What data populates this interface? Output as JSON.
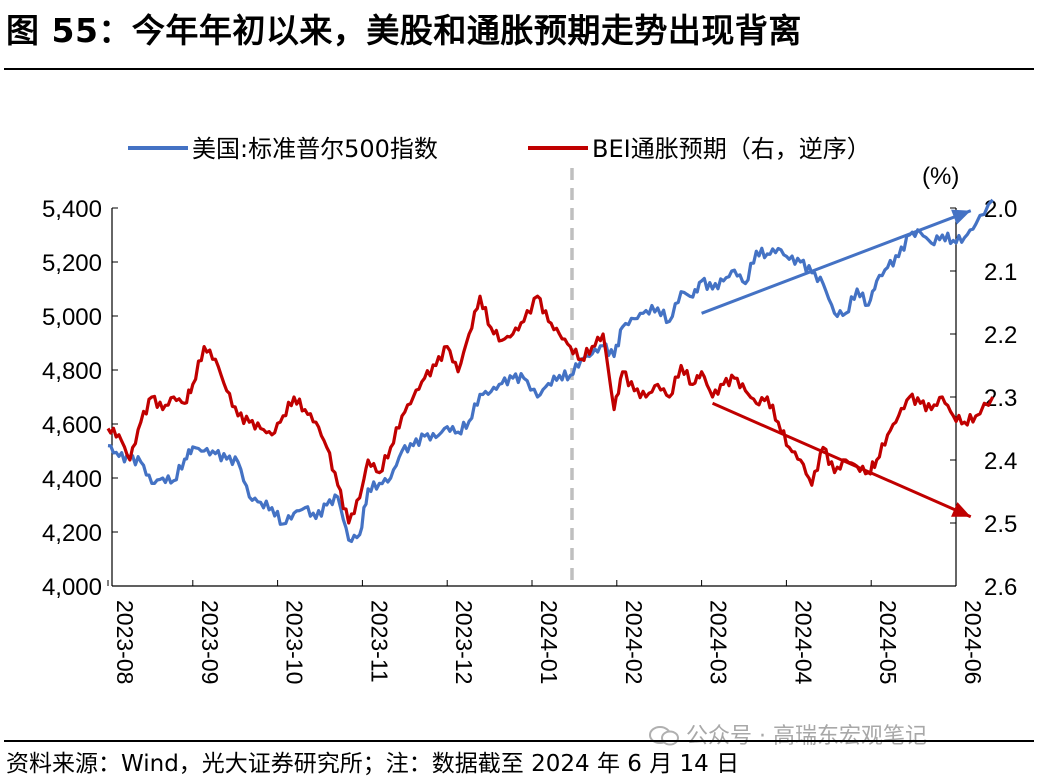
{
  "header": {
    "title": "图 55：今年年初以来，美股和通胀预期走势出现背离"
  },
  "footer": {
    "source": "资料来源：Wind，光大证券研究所；注：数据截至 2024 年 6 月 14 日",
    "watermark": "公众号 · 高瑞东宏观笔记"
  },
  "colors": {
    "spx": "#4472C4",
    "bei": "#C00000",
    "divider": "#BFBFBF"
  },
  "chart_data": {
    "type": "line",
    "title": "",
    "x_labels": [
      "2023-08",
      "2023-09",
      "2023-10",
      "2023-11",
      "2023-12",
      "2024-01",
      "2024-02",
      "2024-03",
      "2024-04",
      "2024-05",
      "2024-06"
    ],
    "y_left": {
      "min": 4000,
      "max": 5400,
      "ticks": [
        "4,000",
        "4,200",
        "4,400",
        "4,600",
        "4,800",
        "5,000",
        "5,200",
        "5,400"
      ]
    },
    "y_right": {
      "min": 2.0,
      "max": 2.6,
      "inverted": true,
      "unit_label": "(%)",
      "ticks": [
        "2.0",
        "2.1",
        "2.2",
        "2.3",
        "2.4",
        "2.5",
        "2.6"
      ]
    },
    "legend": {
      "position": "top"
    },
    "series": [
      {
        "name": "美国:标准普尔500指数",
        "axis": "left",
        "points": [
          [
            "2023-08-01",
            4520
          ],
          [
            "2023-08-05",
            4480
          ],
          [
            "2023-08-09",
            4470
          ],
          [
            "2023-08-13",
            4460
          ],
          [
            "2023-08-17",
            4380
          ],
          [
            "2023-08-21",
            4400
          ],
          [
            "2023-08-25",
            4390
          ],
          [
            "2023-08-29",
            4470
          ],
          [
            "2023-09-01",
            4515
          ],
          [
            "2023-09-05",
            4500
          ],
          [
            "2023-09-09",
            4490
          ],
          [
            "2023-09-13",
            4470
          ],
          [
            "2023-09-17",
            4460
          ],
          [
            "2023-09-21",
            4330
          ],
          [
            "2023-09-25",
            4310
          ],
          [
            "2023-09-29",
            4290
          ],
          [
            "2023-10-03",
            4230
          ],
          [
            "2023-10-07",
            4270
          ],
          [
            "2023-10-11",
            4290
          ],
          [
            "2023-10-15",
            4250
          ],
          [
            "2023-10-19",
            4300
          ],
          [
            "2023-10-23",
            4330
          ],
          [
            "2023-10-27",
            4170
          ],
          [
            "2023-10-31",
            4190
          ],
          [
            "2023-11-03",
            4360
          ],
          [
            "2023-11-07",
            4380
          ],
          [
            "2023-11-11",
            4400
          ],
          [
            "2023-11-15",
            4500
          ],
          [
            "2023-11-19",
            4520
          ],
          [
            "2023-11-23",
            4555
          ],
          [
            "2023-11-27",
            4550
          ],
          [
            "2023-12-01",
            4590
          ],
          [
            "2023-12-05",
            4570
          ],
          [
            "2023-12-09",
            4610
          ],
          [
            "2023-12-13",
            4710
          ],
          [
            "2023-12-17",
            4720
          ],
          [
            "2023-12-21",
            4750
          ],
          [
            "2023-12-25",
            4770
          ],
          [
            "2023-12-29",
            4770
          ],
          [
            "2024-01-03",
            4700
          ],
          [
            "2024-01-07",
            4750
          ],
          [
            "2024-01-11",
            4780
          ],
          [
            "2024-01-15",
            4780
          ],
          [
            "2024-01-19",
            4840
          ],
          [
            "2024-01-23",
            4860
          ],
          [
            "2024-01-27",
            4890
          ],
          [
            "2024-01-31",
            4850
          ],
          [
            "2024-02-03",
            4960
          ],
          [
            "2024-02-07",
            4990
          ],
          [
            "2024-02-11",
            5020
          ],
          [
            "2024-02-15",
            5030
          ],
          [
            "2024-02-19",
            4980
          ],
          [
            "2024-02-23",
            5090
          ],
          [
            "2024-02-27",
            5070
          ],
          [
            "2024-03-01",
            5130
          ],
          [
            "2024-03-05",
            5100
          ],
          [
            "2024-03-09",
            5130
          ],
          [
            "2024-03-13",
            5170
          ],
          [
            "2024-03-17",
            5120
          ],
          [
            "2024-03-21",
            5240
          ],
          [
            "2024-03-25",
            5230
          ],
          [
            "2024-03-29",
            5250
          ],
          [
            "2024-04-02",
            5210
          ],
          [
            "2024-04-06",
            5200
          ],
          [
            "2024-04-10",
            5160
          ],
          [
            "2024-04-14",
            5120
          ],
          [
            "2024-04-18",
            5010
          ],
          [
            "2024-04-22",
            5010
          ],
          [
            "2024-04-26",
            5100
          ],
          [
            "2024-04-30",
            5040
          ],
          [
            "2024-05-03",
            5130
          ],
          [
            "2024-05-07",
            5180
          ],
          [
            "2024-05-11",
            5220
          ],
          [
            "2024-05-15",
            5300
          ],
          [
            "2024-05-19",
            5310
          ],
          [
            "2024-05-23",
            5270
          ],
          [
            "2024-05-27",
            5300
          ],
          [
            "2024-05-31",
            5280
          ],
          [
            "2024-06-04",
            5290
          ],
          [
            "2024-06-08",
            5340
          ],
          [
            "2024-06-14",
            5430
          ]
        ]
      },
      {
        "name": "BEI通胀预期（右，逆序）",
        "axis": "right",
        "points": [
          [
            "2023-08-01",
            2.35
          ],
          [
            "2023-08-05",
            2.36
          ],
          [
            "2023-08-09",
            2.4
          ],
          [
            "2023-08-13",
            2.34
          ],
          [
            "2023-08-17",
            2.3
          ],
          [
            "2023-08-21",
            2.32
          ],
          [
            "2023-08-25",
            2.3
          ],
          [
            "2023-08-29",
            2.31
          ],
          [
            "2023-09-01",
            2.28
          ],
          [
            "2023-09-05",
            2.22
          ],
          [
            "2023-09-09",
            2.24
          ],
          [
            "2023-09-13",
            2.29
          ],
          [
            "2023-09-17",
            2.33
          ],
          [
            "2023-09-21",
            2.34
          ],
          [
            "2023-09-25",
            2.35
          ],
          [
            "2023-09-29",
            2.36
          ],
          [
            "2023-10-03",
            2.33
          ],
          [
            "2023-10-07",
            2.3
          ],
          [
            "2023-10-11",
            2.32
          ],
          [
            "2023-10-15",
            2.34
          ],
          [
            "2023-10-19",
            2.38
          ],
          [
            "2023-10-23",
            2.44
          ],
          [
            "2023-10-27",
            2.5
          ],
          [
            "2023-10-31",
            2.46
          ],
          [
            "2023-11-03",
            2.4
          ],
          [
            "2023-11-07",
            2.42
          ],
          [
            "2023-11-11",
            2.38
          ],
          [
            "2023-11-15",
            2.33
          ],
          [
            "2023-11-19",
            2.3
          ],
          [
            "2023-11-23",
            2.27
          ],
          [
            "2023-11-27",
            2.25
          ],
          [
            "2023-12-01",
            2.22
          ],
          [
            "2023-12-05",
            2.26
          ],
          [
            "2023-12-09",
            2.2
          ],
          [
            "2023-12-13",
            2.14
          ],
          [
            "2023-12-17",
            2.19
          ],
          [
            "2023-12-21",
            2.21
          ],
          [
            "2023-12-25",
            2.2
          ],
          [
            "2023-12-29",
            2.18
          ],
          [
            "2024-01-03",
            2.14
          ],
          [
            "2024-01-07",
            2.18
          ],
          [
            "2024-01-11",
            2.2
          ],
          [
            "2024-01-15",
            2.22
          ],
          [
            "2024-01-19",
            2.24
          ],
          [
            "2024-01-23",
            2.22
          ],
          [
            "2024-01-27",
            2.2
          ],
          [
            "2024-01-31",
            2.32
          ],
          [
            "2024-02-03",
            2.26
          ],
          [
            "2024-02-07",
            2.29
          ],
          [
            "2024-02-11",
            2.3
          ],
          [
            "2024-02-15",
            2.28
          ],
          [
            "2024-02-19",
            2.3
          ],
          [
            "2024-02-23",
            2.25
          ],
          [
            "2024-02-27",
            2.28
          ],
          [
            "2024-03-01",
            2.26
          ],
          [
            "2024-03-05",
            2.3
          ],
          [
            "2024-03-09",
            2.28
          ],
          [
            "2024-03-13",
            2.27
          ],
          [
            "2024-03-17",
            2.29
          ],
          [
            "2024-03-21",
            2.31
          ],
          [
            "2024-03-25",
            2.3
          ],
          [
            "2024-03-29",
            2.34
          ],
          [
            "2024-04-02",
            2.38
          ],
          [
            "2024-04-06",
            2.4
          ],
          [
            "2024-04-10",
            2.44
          ],
          [
            "2024-04-14",
            2.38
          ],
          [
            "2024-04-18",
            2.42
          ],
          [
            "2024-04-22",
            2.4
          ],
          [
            "2024-04-26",
            2.41
          ],
          [
            "2024-04-30",
            2.42
          ],
          [
            "2024-05-03",
            2.4
          ],
          [
            "2024-05-07",
            2.36
          ],
          [
            "2024-05-11",
            2.33
          ],
          [
            "2024-05-15",
            2.3
          ],
          [
            "2024-05-19",
            2.31
          ],
          [
            "2024-05-23",
            2.32
          ],
          [
            "2024-05-27",
            2.3
          ],
          [
            "2024-05-31",
            2.33
          ],
          [
            "2024-06-04",
            2.34
          ],
          [
            "2024-06-08",
            2.33
          ],
          [
            "2024-06-14",
            2.3
          ]
        ]
      }
    ],
    "annotations": [
      {
        "type": "vertical-dashed-line",
        "x": "2024-01-01"
      },
      {
        "type": "arrow",
        "series": "美国:标准普尔500指数",
        "from": [
          "2024-03-01",
          5010
        ],
        "to": [
          "2024-06-14",
          5390
        ]
      },
      {
        "type": "arrow",
        "series": "BEI通胀预期（右，逆序）",
        "from": [
          "2024-03-05",
          2.31
        ],
        "to": [
          "2024-06-14",
          2.49
        ]
      }
    ]
  }
}
